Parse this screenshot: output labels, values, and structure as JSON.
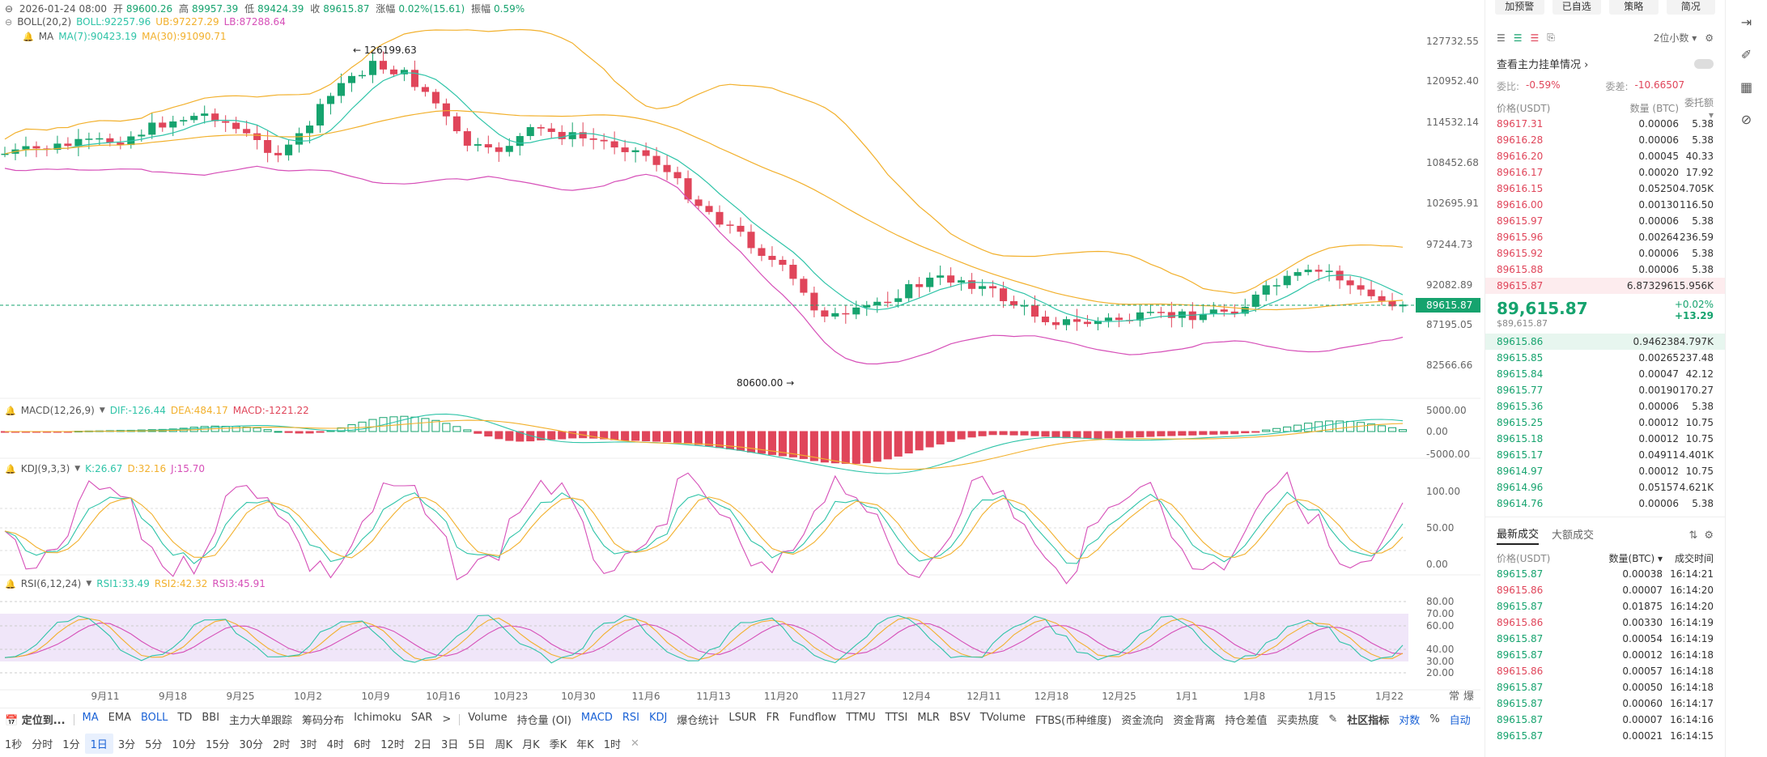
{
  "ohlc": {
    "date": "2026-01-24 08:00",
    "open_label": "开",
    "open": "89600.26",
    "high_label": "高",
    "high": "89957.39",
    "low_label": "低",
    "low": "89424.39",
    "close_label": "收",
    "close": "89615.87",
    "change_label": "涨幅",
    "change": "0.02%(15.61)",
    "amp_label": "振幅",
    "amp": "0.59%"
  },
  "boll": {
    "name": "BOLL(20,2)",
    "mid": "BOLL:92257.96",
    "ub": "UB:97227.29",
    "lb": "LB:87288.64"
  },
  "ma": {
    "name": "MA",
    "ma7": "MA(7):90423.19",
    "ma30": "MA(30):91090.71"
  },
  "macd": {
    "name": "MACD(12,26,9)",
    "dif": "DIF:-126.44",
    "dea": "DEA:484.17",
    "macd": "MACD:-1221.22"
  },
  "kdj": {
    "name": "KDJ(9,3,3)",
    "k": "K:26.67",
    "d": "D:32.16",
    "j": "J:15.70"
  },
  "rsi": {
    "name": "RSI(6,12,24)",
    "r1": "RSI1:33.49",
    "r2": "RSI2:42.32",
    "r3": "RSI3:45.91"
  },
  "annotations": {
    "high": "126199.63",
    "low": "80600.00",
    "current": "89615.87"
  },
  "axis": {
    "main": [
      "127732.55",
      "120952.40",
      "114532.14",
      "108452.68",
      "102695.91",
      "97244.73",
      "92082.89",
      "87195.05",
      "82566.66"
    ],
    "macd": [
      "5000.00",
      "0.00",
      "-5000.00"
    ],
    "kdj": [
      "100.00",
      "50.00",
      "0.00"
    ],
    "rsi": [
      "80.00",
      "70.00",
      "60.00",
      "40.00",
      "30.00",
      "20.00"
    ],
    "dates": [
      "9月11",
      "9月18",
      "9月25",
      "10月2",
      "10月9",
      "10月16",
      "10月23",
      "10月30",
      "11月6",
      "11月13",
      "11月20",
      "11月27",
      "12月4",
      "12月11",
      "12月18",
      "12月25",
      "1月1",
      "1月8",
      "1月15",
      "1月22"
    ],
    "corner": [
      "常",
      "爆"
    ]
  },
  "indicator_toolbar": {
    "locate": "定位到...",
    "items": [
      "MA",
      "EMA",
      "BOLL",
      "TD",
      "BBI",
      "主力大单跟踪",
      "筹码分布",
      "Ichimoku",
      "SAR"
    ],
    "more": ">",
    "sub_items": [
      "Volume",
      "持仓量 (OI)",
      "MACD",
      "RSI",
      "KDJ",
      "爆仓统计",
      "LSUR",
      "FR",
      "Fundflow",
      "TTMU",
      "TTSI",
      "MLR",
      "BSV",
      "TVolume",
      "FTBS(币种维度)",
      "资金流向",
      "资金背离",
      "持仓差值",
      "买卖热度"
    ],
    "community": "社区指标",
    "log": "对数",
    "pct": "%",
    "auto": "自动"
  },
  "timeframes": [
    "1秒",
    "分时",
    "1分",
    "1日",
    "3分",
    "5分",
    "10分",
    "15分",
    "30分",
    "2时",
    "3时",
    "4时",
    "6时",
    "12时",
    "2日",
    "3日",
    "5日",
    "周K",
    "月K",
    "季K",
    "年K",
    "1时"
  ],
  "active_timeframe": "1日",
  "right_panel": {
    "buttons": [
      "加预警",
      "已自选",
      "策略",
      "简况"
    ],
    "precision": "2位小数",
    "depth_link": "查看主力挂单情况",
    "weibi_label": "委比:",
    "weibi": "-0.59%",
    "weicha_label": "委差:",
    "weicha": "-10.66507",
    "book_headers": [
      "价格(USDT)",
      "数量 (BTC)",
      "委托额"
    ],
    "asks": [
      [
        "89617.31",
        "0.00006",
        "5.38"
      ],
      [
        "89616.28",
        "0.00006",
        "5.38"
      ],
      [
        "89616.20",
        "0.00045",
        "40.33"
      ],
      [
        "89616.17",
        "0.00020",
        "17.92"
      ],
      [
        "89616.15",
        "0.05250",
        "4.705K"
      ],
      [
        "89616.00",
        "0.00130",
        "116.50"
      ],
      [
        "89615.97",
        "0.00006",
        "5.38"
      ],
      [
        "89615.96",
        "0.00264",
        "236.59"
      ],
      [
        "89615.92",
        "0.00006",
        "5.38"
      ],
      [
        "89615.88",
        "0.00006",
        "5.38"
      ],
      [
        "89615.87",
        "6.87329",
        "615.956K"
      ]
    ],
    "last_price": "89,615.87",
    "last_price_sub": "$89,615.87",
    "last_change_pct": "+0.02%",
    "last_change": "+13.29",
    "bids": [
      [
        "89615.86",
        "0.94623",
        "84.797K"
      ],
      [
        "89615.85",
        "0.00265",
        "237.48"
      ],
      [
        "89615.84",
        "0.00047",
        "42.12"
      ],
      [
        "89615.77",
        "0.00190",
        "170.27"
      ],
      [
        "89615.36",
        "0.00006",
        "5.38"
      ],
      [
        "89615.25",
        "0.00012",
        "10.75"
      ],
      [
        "89615.18",
        "0.00012",
        "10.75"
      ],
      [
        "89615.17",
        "0.04911",
        "4.401K"
      ],
      [
        "89614.97",
        "0.00012",
        "10.75"
      ],
      [
        "89614.96",
        "0.05157",
        "4.621K"
      ],
      [
        "89614.76",
        "0.00006",
        "5.38"
      ]
    ],
    "trade_tabs": [
      "最新成交",
      "大额成交"
    ],
    "trade_headers": [
      "价格(USDT)",
      "数量(BTC)",
      "成交时间"
    ],
    "trades": [
      [
        "89615.87",
        "0.00038",
        "16:14:21",
        "up"
      ],
      [
        "89615.86",
        "0.00007",
        "16:14:20",
        "dn"
      ],
      [
        "89615.87",
        "0.01875",
        "16:14:20",
        "up"
      ],
      [
        "89615.86",
        "0.00330",
        "16:14:19",
        "dn"
      ],
      [
        "89615.87",
        "0.00054",
        "16:14:19",
        "up"
      ],
      [
        "89615.87",
        "0.00012",
        "16:14:18",
        "up"
      ],
      [
        "89615.86",
        "0.00057",
        "16:14:18",
        "dn"
      ],
      [
        "89615.87",
        "0.00050",
        "16:14:18",
        "up"
      ],
      [
        "89615.87",
        "0.00060",
        "16:14:17",
        "up"
      ],
      [
        "89615.87",
        "0.00007",
        "16:14:16",
        "up"
      ],
      [
        "89615.87",
        "0.00021",
        "16:14:15",
        "up"
      ]
    ]
  },
  "colors": {
    "up": "#16a36e",
    "down": "#e0455a",
    "boll_band": "#f2b02c",
    "boll_lb": "#d64fb8",
    "ma7": "#2fc4a8",
    "ma30": "#f2b02c",
    "rsi_zone": "#ece0f8"
  }
}
